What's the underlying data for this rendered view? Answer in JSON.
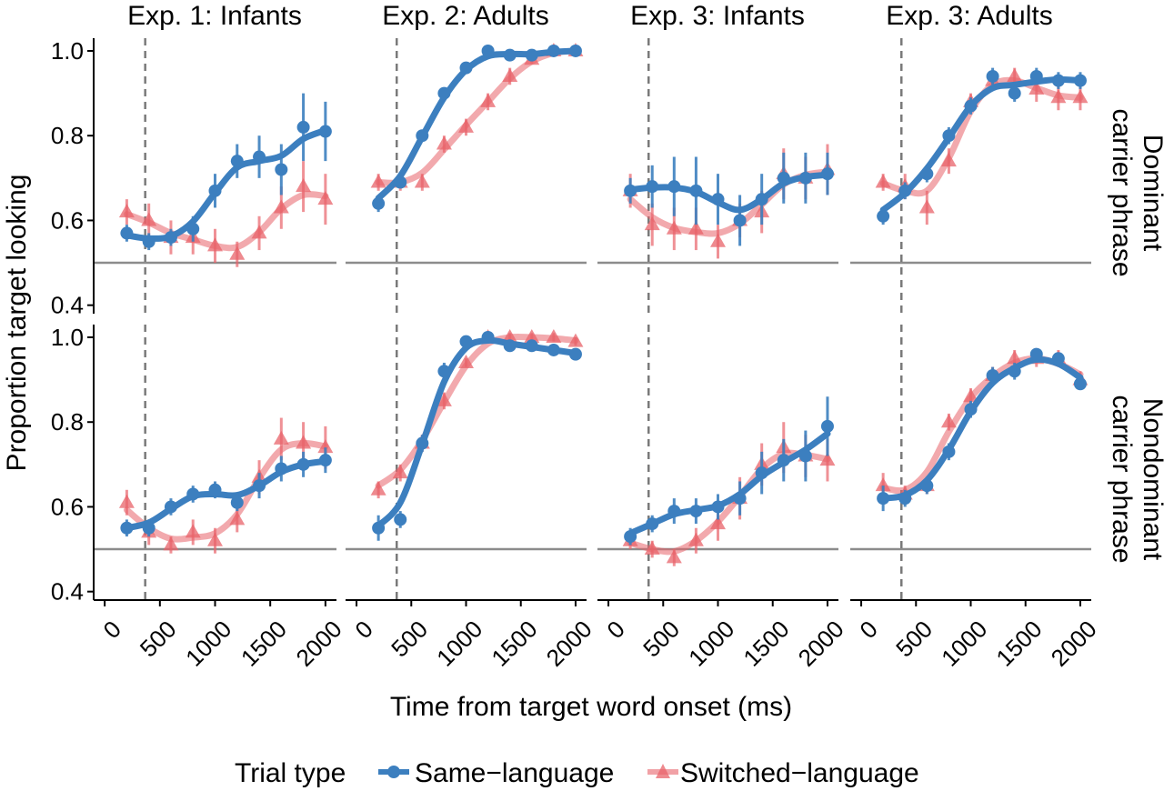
{
  "chart_data": {
    "type": "line",
    "facet_columns": [
      "Exp. 1: Infants",
      "Exp. 2: Adults",
      "Exp. 3: Infants",
      "Exp. 3: Adults"
    ],
    "facet_rows": [
      [
        "Dominant",
        "carrier phrase"
      ],
      [
        "Nondominant",
        "carrier phrase"
      ]
    ],
    "xlabel": "Time from target word onset (ms)",
    "ylabel": "Proportion target looking",
    "xlim": [
      -100,
      2100
    ],
    "ylim": [
      0.38,
      1.03
    ],
    "x_ticks": [
      0,
      500,
      1000,
      1500,
      2000
    ],
    "y_ticks": [
      0.4,
      0.6,
      0.8,
      1.0
    ],
    "y_tick_labels": [
      "0.4",
      "0.6",
      "0.8",
      "1.0"
    ],
    "chance_line": 0.5,
    "dashed_vline_x": 367,
    "grid": false,
    "legend": {
      "title": "Trial type",
      "position": "bottom",
      "entries": [
        {
          "name": "Same−language",
          "color": "#3c7fbf",
          "marker": "circle"
        },
        {
          "name": "Switched−language",
          "color": "#e8636a",
          "marker": "triangle"
        }
      ]
    },
    "x": [
      200,
      400,
      600,
      800,
      1000,
      1200,
      1400,
      1600,
      1800,
      2000
    ],
    "panels": [
      {
        "row": 0,
        "col": 0,
        "same": {
          "y": [
            0.57,
            0.55,
            0.56,
            0.58,
            0.67,
            0.74,
            0.75,
            0.72,
            0.82,
            0.81
          ],
          "err": [
            0.02,
            0.02,
            0.02,
            0.03,
            0.04,
            0.04,
            0.05,
            0.06,
            0.08,
            0.07
          ]
        },
        "switched": {
          "y": [
            0.62,
            0.6,
            0.56,
            0.56,
            0.54,
            0.52,
            0.57,
            0.63,
            0.68,
            0.65
          ],
          "err": [
            0.03,
            0.04,
            0.04,
            0.04,
            0.04,
            0.03,
            0.04,
            0.05,
            0.06,
            0.06
          ]
        }
      },
      {
        "row": 0,
        "col": 1,
        "same": {
          "y": [
            0.64,
            0.69,
            0.8,
            0.9,
            0.96,
            1.0,
            0.99,
            0.99,
            1.0,
            1.0
          ],
          "err": [
            0.02,
            0.01,
            0.01,
            0.01,
            0.01,
            0.005,
            0.005,
            0.005,
            0.005,
            0.005
          ]
        },
        "switched": {
          "y": [
            0.69,
            0.69,
            0.69,
            0.78,
            0.82,
            0.88,
            0.94,
            0.98,
            1.0,
            1.0
          ],
          "err": [
            0.02,
            0.02,
            0.02,
            0.02,
            0.02,
            0.02,
            0.02,
            0.01,
            0.01,
            0.01
          ]
        }
      },
      {
        "row": 0,
        "col": 2,
        "same": {
          "y": [
            0.67,
            0.68,
            0.68,
            0.67,
            0.65,
            0.6,
            0.65,
            0.7,
            0.7,
            0.71
          ],
          "err": [
            0.03,
            0.05,
            0.07,
            0.08,
            0.06,
            0.06,
            0.06,
            0.06,
            0.06,
            0.05
          ]
        },
        "switched": {
          "y": [
            0.67,
            0.59,
            0.58,
            0.58,
            0.55,
            0.6,
            0.62,
            0.71,
            0.7,
            0.72
          ],
          "err": [
            0.04,
            0.05,
            0.05,
            0.05,
            0.04,
            0.04,
            0.05,
            0.06,
            0.05,
            0.06
          ]
        }
      },
      {
        "row": 0,
        "col": 3,
        "same": {
          "y": [
            0.61,
            0.67,
            0.71,
            0.8,
            0.87,
            0.94,
            0.9,
            0.94,
            0.93,
            0.93
          ],
          "err": [
            0.02,
            0.02,
            0.02,
            0.02,
            0.02,
            0.02,
            0.02,
            0.02,
            0.02,
            0.02
          ]
        },
        "switched": {
          "y": [
            0.69,
            0.68,
            0.63,
            0.74,
            0.88,
            0.93,
            0.94,
            0.91,
            0.89,
            0.89
          ],
          "err": [
            0.02,
            0.03,
            0.04,
            0.03,
            0.02,
            0.02,
            0.02,
            0.03,
            0.03,
            0.03
          ]
        }
      },
      {
        "row": 1,
        "col": 0,
        "same": {
          "y": [
            0.55,
            0.55,
            0.6,
            0.63,
            0.64,
            0.61,
            0.65,
            0.69,
            0.7,
            0.71
          ],
          "err": [
            0.02,
            0.02,
            0.02,
            0.02,
            0.02,
            0.02,
            0.03,
            0.03,
            0.03,
            0.03
          ]
        },
        "switched": {
          "y": [
            0.61,
            0.54,
            0.51,
            0.54,
            0.52,
            0.57,
            0.67,
            0.76,
            0.75,
            0.74
          ],
          "err": [
            0.03,
            0.03,
            0.02,
            0.03,
            0.03,
            0.03,
            0.04,
            0.05,
            0.05,
            0.05
          ]
        }
      },
      {
        "row": 1,
        "col": 1,
        "same": {
          "y": [
            0.55,
            0.57,
            0.75,
            0.92,
            0.99,
            1.0,
            0.98,
            0.98,
            0.97,
            0.96
          ],
          "err": [
            0.03,
            0.02,
            0.02,
            0.02,
            0.01,
            0.01,
            0.01,
            0.01,
            0.01,
            0.01
          ]
        },
        "switched": {
          "y": [
            0.64,
            0.68,
            0.75,
            0.85,
            0.94,
            1.0,
            1.0,
            1.0,
            1.0,
            0.99
          ],
          "err": [
            0.02,
            0.02,
            0.02,
            0.02,
            0.01,
            0.01,
            0.01,
            0.01,
            0.01,
            0.01
          ]
        }
      },
      {
        "row": 1,
        "col": 2,
        "same": {
          "y": [
            0.53,
            0.56,
            0.59,
            0.59,
            0.6,
            0.62,
            0.68,
            0.71,
            0.72,
            0.79
          ],
          "err": [
            0.02,
            0.02,
            0.03,
            0.03,
            0.03,
            0.04,
            0.05,
            0.05,
            0.06,
            0.07
          ]
        },
        "switched": {
          "y": [
            0.52,
            0.5,
            0.48,
            0.52,
            0.56,
            0.62,
            0.7,
            0.74,
            0.72,
            0.71
          ],
          "err": [
            0.02,
            0.02,
            0.02,
            0.03,
            0.04,
            0.05,
            0.05,
            0.06,
            0.05,
            0.05
          ]
        }
      },
      {
        "row": 1,
        "col": 3,
        "same": {
          "y": [
            0.62,
            0.62,
            0.65,
            0.73,
            0.83,
            0.91,
            0.92,
            0.96,
            0.95,
            0.89
          ],
          "err": [
            0.03,
            0.02,
            0.02,
            0.02,
            0.02,
            0.02,
            0.02,
            0.01,
            0.01,
            0.01
          ]
        },
        "switched": {
          "y": [
            0.65,
            0.63,
            0.65,
            0.8,
            0.86,
            0.91,
            0.95,
            0.95,
            0.95,
            0.9
          ],
          "err": [
            0.03,
            0.02,
            0.02,
            0.02,
            0.02,
            0.02,
            0.02,
            0.02,
            0.02,
            0.02
          ]
        }
      }
    ]
  }
}
